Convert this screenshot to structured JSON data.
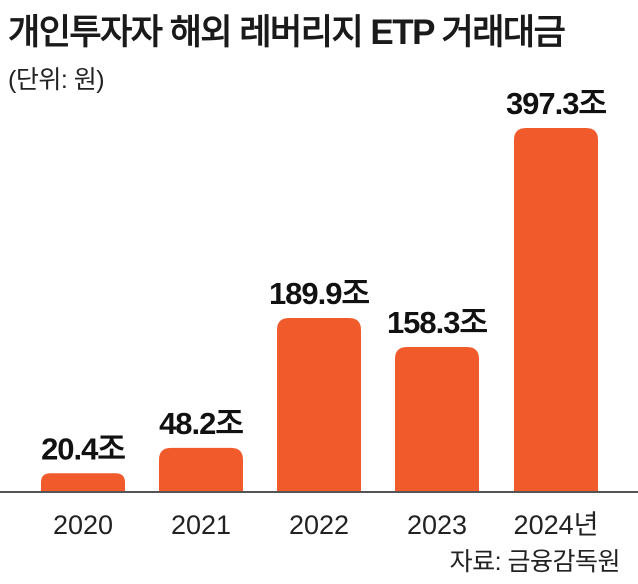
{
  "header": {
    "title": "개인투자자 해외 레버리지 ETP 거래대금",
    "unit": "(단위: 원)"
  },
  "footer": {
    "source": "자료: 금융감독원"
  },
  "colors": {
    "bar": "#f15a2b",
    "baseline": "#555555",
    "text": "#111111"
  },
  "chart_data": {
    "type": "bar",
    "categories": [
      "2020",
      "2021",
      "2022",
      "2023",
      "2024년"
    ],
    "values": [
      20.4,
      48.2,
      189.9,
      158.3,
      397.3
    ],
    "value_labels": [
      "20.4조",
      "48.2조",
      "189.9조",
      "158.3조",
      "397.3조"
    ],
    "title": "개인투자자 해외 레버리지 ETP 거래대금",
    "xlabel": "",
    "ylabel": "",
    "ylim": [
      0,
      397.3
    ],
    "grid": false,
    "legend": "none"
  }
}
